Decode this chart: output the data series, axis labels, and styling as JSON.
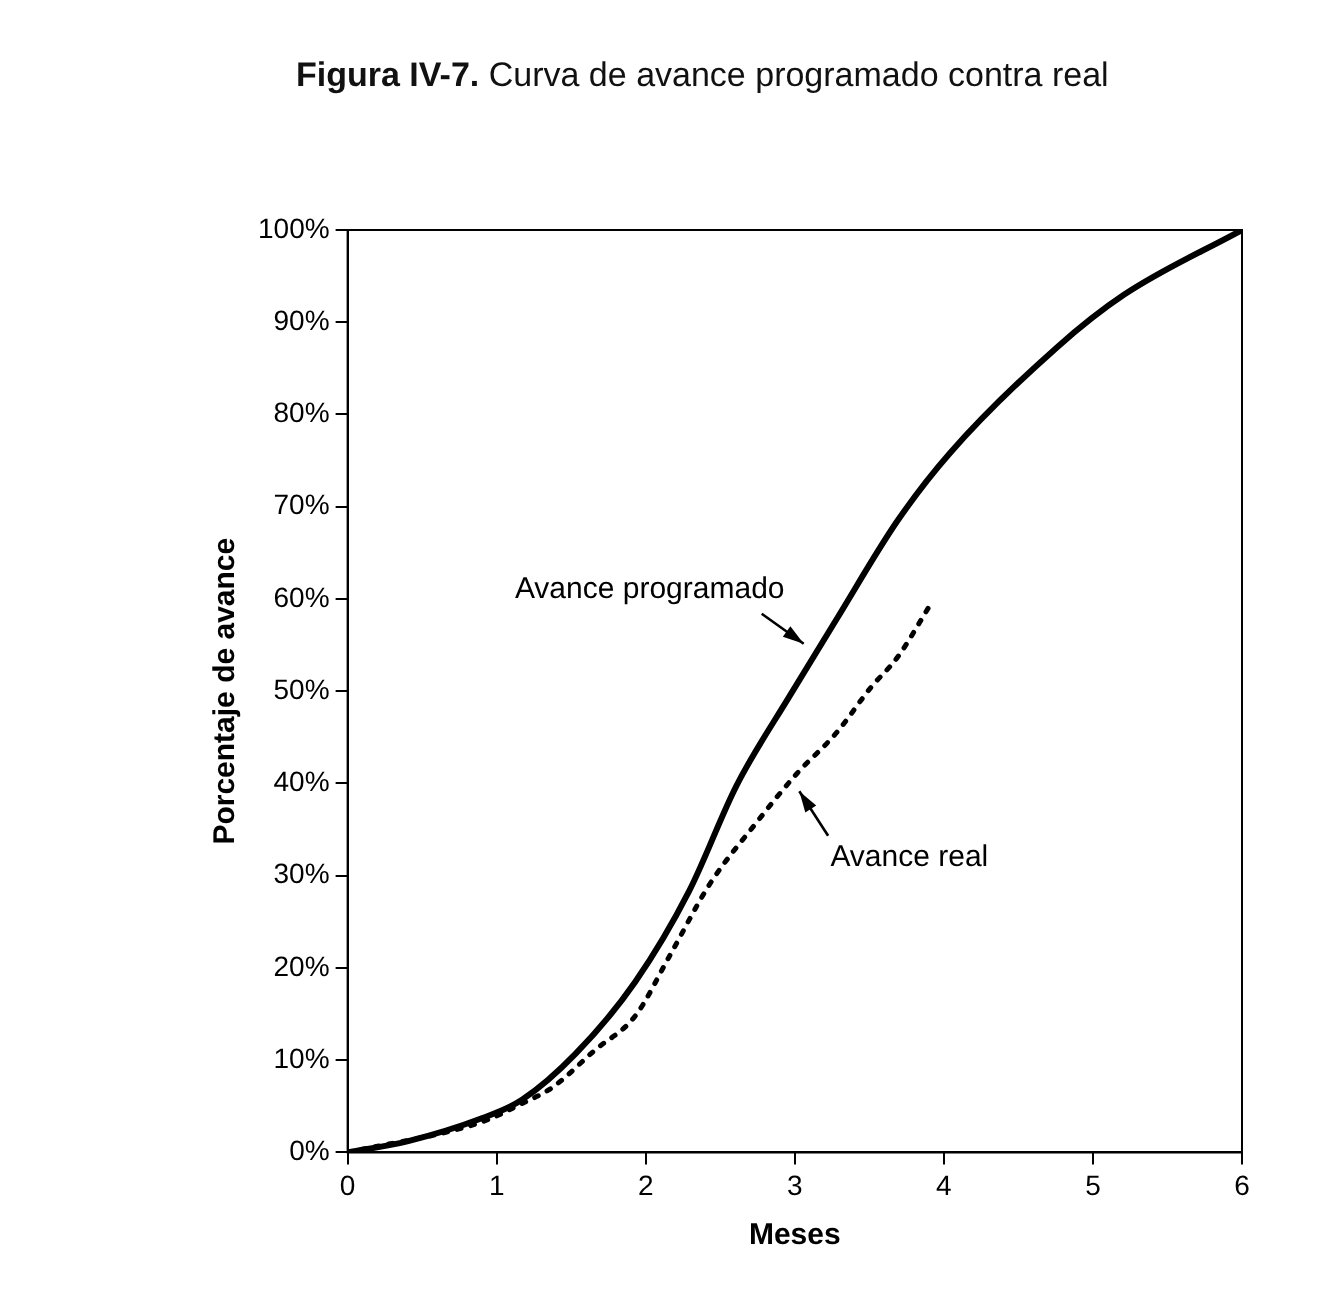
{
  "chart_data": {
    "type": "line",
    "title": "Figura IV-7. Curva de avance programado contra real",
    "xlabel": "Meses",
    "ylabel": "Porcentaje de avance",
    "xlim": [
      0,
      6
    ],
    "xticks": [
      0,
      1,
      2,
      3,
      4,
      5,
      6
    ],
    "ylim": [
      0,
      100
    ],
    "yticks": [
      {
        "value": 0,
        "label": "0%"
      },
      {
        "value": 10,
        "label": "10%"
      },
      {
        "value": 20,
        "label": "20%"
      },
      {
        "value": 30,
        "label": "30%"
      },
      {
        "value": 40,
        "label": "40%"
      },
      {
        "value": 50,
        "label": "50%"
      },
      {
        "value": 60,
        "label": "60%"
      },
      {
        "value": 70,
        "label": "70%"
      },
      {
        "value": 80,
        "label": "80%"
      },
      {
        "value": 90,
        "label": "90%"
      },
      {
        "value": 100,
        "label": "100%"
      }
    ],
    "grid": false,
    "legend": false,
    "marker": "none",
    "series": [
      {
        "color": "#000000",
        "line_style": "solid",
        "x": [
          0,
          0.4,
          0.9,
          1.17,
          1.53,
          1.93,
          2.29,
          2.61,
          2.97,
          3.28,
          3.69,
          4.04,
          4.76,
          5.21,
          6
        ],
        "values": [
          0,
          1.2,
          3.7,
          5.7,
          10.7,
          18.5,
          28.3,
          39.8,
          49.6,
          57.8,
          68.5,
          75.8,
          87.3,
          93,
          100
        ]
      },
      {
        "color": "#000000",
        "line_style": "dotted",
        "x": [
          0,
          0.9,
          1.17,
          1.37,
          1.66,
          1.93,
          2.16,
          2.43,
          2.74,
          3.01,
          3.28,
          3.51,
          3.69,
          3.91
        ],
        "values": [
          0,
          3.3,
          5.3,
          7,
          11.1,
          14.8,
          21.3,
          29.1,
          35.7,
          41,
          45.5,
          50.4,
          53.7,
          59.4
        ]
      }
    ],
    "annotations": [
      {
        "text": "Avance programado",
        "x": 3.1,
        "y": 54.5
      },
      {
        "text": "Avance real",
        "x": 2.99,
        "y": 39.8
      }
    ]
  }
}
